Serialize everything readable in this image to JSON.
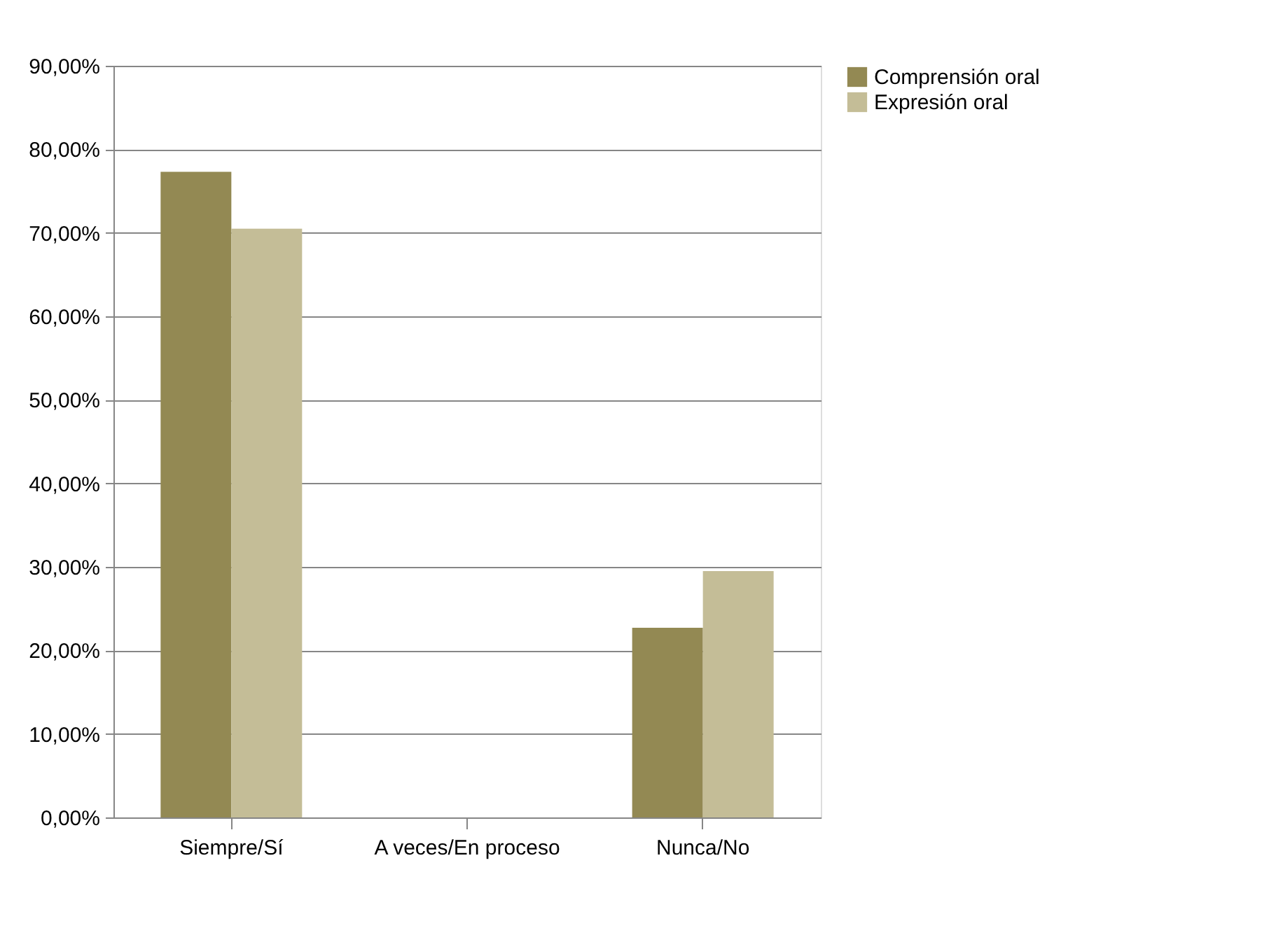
{
  "chart_data": {
    "type": "bar",
    "categories": [
      "Siempre/Sí",
      "A veces/En proceso",
      "Nunca/No"
    ],
    "series": [
      {
        "name": "Comprensión oral",
        "color": "#938953",
        "values": [
          77.3,
          0,
          22.7
        ]
      },
      {
        "name": "Expresión oral",
        "color": "#c4bd97",
        "values": [
          70.5,
          0,
          29.5
        ]
      }
    ],
    "ylim": [
      0,
      90
    ],
    "yticks": [
      {
        "value": 0,
        "label": "0,00%"
      },
      {
        "value": 10,
        "label": "10,00%"
      },
      {
        "value": 20,
        "label": "20,00%"
      },
      {
        "value": 30,
        "label": "30,00%"
      },
      {
        "value": 40,
        "label": "40,00%"
      },
      {
        "value": 50,
        "label": "50,00%"
      },
      {
        "value": 60,
        "label": "60,00%"
      },
      {
        "value": 70,
        "label": "70,00%"
      },
      {
        "value": 80,
        "label": "80,00%"
      },
      {
        "value": 90,
        "label": "90,00%"
      }
    ],
    "grid": "y",
    "legend": "right"
  }
}
